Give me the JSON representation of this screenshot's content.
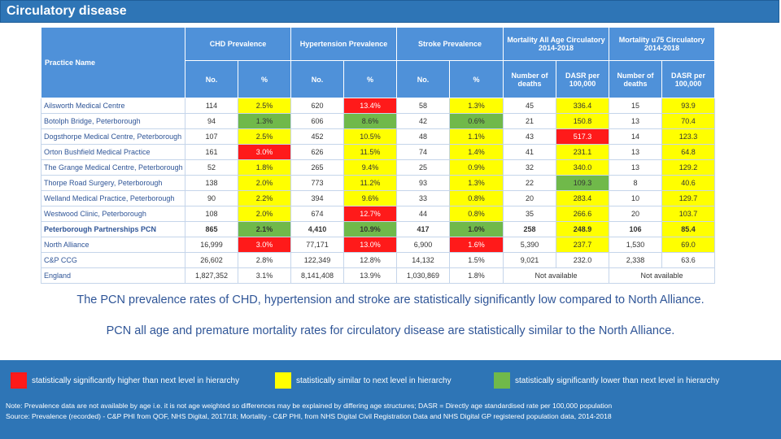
{
  "header": {
    "title": "Circulatory disease"
  },
  "table": {
    "practice_header": "Practice Name",
    "group_headers": [
      "CHD Prevalence",
      "Hypertension Prevalence",
      "Stroke Prevalence",
      "Mortality All Age Circulatory 2014-2018",
      "Mortality u75 Circulatory 2014-2018"
    ],
    "sub_headers": [
      "No.",
      "%",
      "No.",
      "%",
      "No.",
      "%",
      "Number of deaths",
      "DASR per 100,000",
      "Number of deaths",
      "DASR per 100,000"
    ],
    "rows": [
      {
        "name": "Ailsworth Medical Centre",
        "cells": [
          "114",
          "2.5%",
          "620",
          "13.4%",
          "58",
          "1.3%",
          "45",
          "336.4",
          "15",
          "93.9"
        ],
        "colors": [
          "",
          "yellow",
          "",
          "red",
          "",
          "yellow",
          "",
          "yellow",
          "",
          "yellow"
        ]
      },
      {
        "name": "Botolph Bridge, Peterborough",
        "cells": [
          "94",
          "1.3%",
          "606",
          "8.6%",
          "42",
          "0.6%",
          "21",
          "150.8",
          "13",
          "70.4"
        ],
        "colors": [
          "",
          "green",
          "",
          "green",
          "",
          "green",
          "",
          "yellow",
          "",
          "yellow"
        ]
      },
      {
        "name": "Dogsthorpe Medical Centre, Peterborough",
        "cells": [
          "107",
          "2.5%",
          "452",
          "10.5%",
          "48",
          "1.1%",
          "43",
          "517.3",
          "14",
          "123.3"
        ],
        "colors": [
          "",
          "yellow",
          "",
          "yellow",
          "",
          "yellow",
          "",
          "red",
          "",
          "yellow"
        ]
      },
      {
        "name": "Orton Bushfield Medical Practice",
        "cells": [
          "161",
          "3.0%",
          "626",
          "11.5%",
          "74",
          "1.4%",
          "41",
          "231.1",
          "13",
          "64.8"
        ],
        "colors": [
          "",
          "red",
          "",
          "yellow",
          "",
          "yellow",
          "",
          "yellow",
          "",
          "yellow"
        ]
      },
      {
        "name": "The Grange Medical Centre, Peterborough",
        "cells": [
          "52",
          "1.8%",
          "265",
          "9.4%",
          "25",
          "0.9%",
          "32",
          "340.0",
          "13",
          "129.2"
        ],
        "colors": [
          "",
          "yellow",
          "",
          "yellow",
          "",
          "yellow",
          "",
          "yellow",
          "",
          "yellow"
        ]
      },
      {
        "name": "Thorpe Road Surgery, Peterborough",
        "cells": [
          "138",
          "2.0%",
          "773",
          "11.2%",
          "93",
          "1.3%",
          "22",
          "109.3",
          "8",
          "40.6"
        ],
        "colors": [
          "",
          "yellow",
          "",
          "yellow",
          "",
          "yellow",
          "",
          "green",
          "",
          "yellow"
        ]
      },
      {
        "name": "Welland Medical Practice, Peterborough",
        "cells": [
          "90",
          "2.2%",
          "394",
          "9.6%",
          "33",
          "0.8%",
          "20",
          "283.4",
          "10",
          "129.7"
        ],
        "colors": [
          "",
          "yellow",
          "",
          "yellow",
          "",
          "yellow",
          "",
          "yellow",
          "",
          "yellow"
        ]
      },
      {
        "name": "Westwood Clinic, Peterborough",
        "cells": [
          "108",
          "2.0%",
          "674",
          "12.7%",
          "44",
          "0.8%",
          "35",
          "266.6",
          "20",
          "103.7"
        ],
        "colors": [
          "",
          "yellow",
          "",
          "red",
          "",
          "yellow",
          "",
          "yellow",
          "",
          "yellow"
        ]
      },
      {
        "name": "Peterborough Partnerships PCN",
        "cells": [
          "865",
          "2.1%",
          "4,410",
          "10.9%",
          "417",
          "1.0%",
          "258",
          "248.9",
          "106",
          "85.4"
        ],
        "colors": [
          "",
          "green",
          "",
          "green",
          "",
          "green",
          "",
          "yellow",
          "",
          "yellow"
        ],
        "bold": true
      },
      {
        "name": "North Alliance",
        "cells": [
          "16,999",
          "3.0%",
          "77,171",
          "13.0%",
          "6,900",
          "1.6%",
          "5,390",
          "237.7",
          "1,530",
          "69.0"
        ],
        "colors": [
          "",
          "red",
          "",
          "red",
          "",
          "red",
          "",
          "yellow",
          "",
          "yellow"
        ]
      },
      {
        "name": "C&P CCG",
        "cells": [
          "26,602",
          "2.8%",
          "122,349",
          "12.8%",
          "14,132",
          "1.5%",
          "9,021",
          "232.0",
          "2,338",
          "63.6"
        ],
        "colors": [
          "",
          "",
          "",
          "",
          "",
          "",
          "",
          "",
          "",
          ""
        ]
      }
    ],
    "england": {
      "name": "England",
      "cells": [
        "1,827,352",
        "3.1%",
        "8,141,408",
        "13.9%",
        "1,030,869",
        "1.8%"
      ],
      "mort_all": "Not available",
      "mort_u75": "Not available"
    }
  },
  "statements": [
    "The PCN prevalence rates of CHD, hypertension and stroke are statistically significantly low compared to North Alliance.",
    "PCN all age and premature mortality rates for circulatory disease are statistically similar to the North Alliance."
  ],
  "legend": [
    {
      "label": "statistically significantly higher than next level in hierarchy",
      "color": "#ff1a1a"
    },
    {
      "label": "statistically similar to next level in hierarchy",
      "color": "#ffff00"
    },
    {
      "label": "statistically significantly lower than next level in hierarchy",
      "color": "#70b94a"
    }
  ],
  "notes": [
    "Note: Prevalence data are not available by age i.e. it is not age weighted so differences may be explained by differing age structures; DASR = Directly age standardised rate per 100,000 population",
    "Source: Prevalence (recorded) - C&P PHI from QOF, NHS Digital, 2017/18; Mortality - C&P PHI, from NHS Digital Civil Registration Data and NHS Digital GP registered population data, 2014-2018"
  ]
}
